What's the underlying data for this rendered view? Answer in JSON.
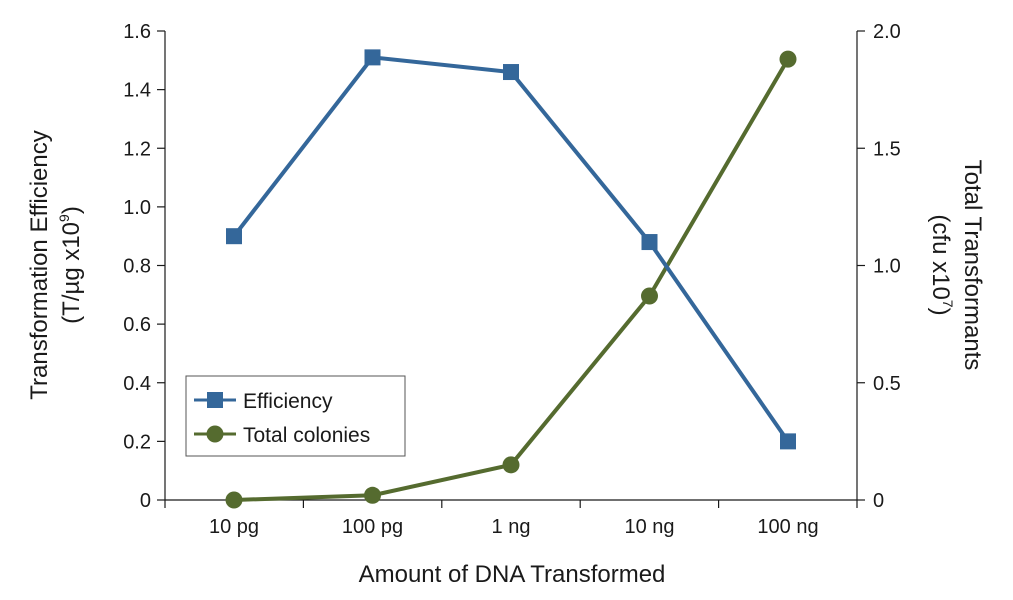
{
  "chart_data": {
    "type": "line",
    "categories": [
      "10 pg",
      "100 pg",
      "1 ng",
      "10 ng",
      "100 ng"
    ],
    "xlabel": "Amount of DNA Transformed",
    "y_left": {
      "label_line1": "Transformation Efficiency",
      "label_line2_prefix": "(T/µg x10",
      "label_line2_sup": "9",
      "label_line2_suffix": ")",
      "ylim": [
        0,
        1.6
      ],
      "ticks": [
        0,
        0.2,
        0.4,
        0.6,
        0.8,
        1.0,
        1.2,
        1.4,
        1.6
      ],
      "tick_labels": [
        "0",
        "0.2",
        "0.4",
        "0.6",
        "0.8",
        "1.0",
        "1.2",
        "1.4",
        "1.6"
      ]
    },
    "y_right": {
      "label_line1": "Total Transformants",
      "label_line2_prefix": "(cfu x10",
      "label_line2_sup": "7",
      "label_line2_suffix": ")",
      "ylim": [
        0,
        2.0
      ],
      "ticks": [
        0,
        0.5,
        1.0,
        1.5,
        2.0
      ],
      "tick_labels": [
        "0",
        "0.5",
        "1.0",
        "1.5",
        "2.0"
      ]
    },
    "series": [
      {
        "name": "Efficiency",
        "axis": "left",
        "marker": "square",
        "color": "#34679a",
        "values": [
          0.9,
          1.51,
          1.46,
          0.88,
          0.2
        ]
      },
      {
        "name": "Total colonies",
        "axis": "right",
        "marker": "circle",
        "color": "#556b2f",
        "values": [
          0.0,
          0.02,
          0.15,
          0.87,
          1.88
        ]
      }
    ],
    "legend_position": "lower-left",
    "grid": false
  }
}
